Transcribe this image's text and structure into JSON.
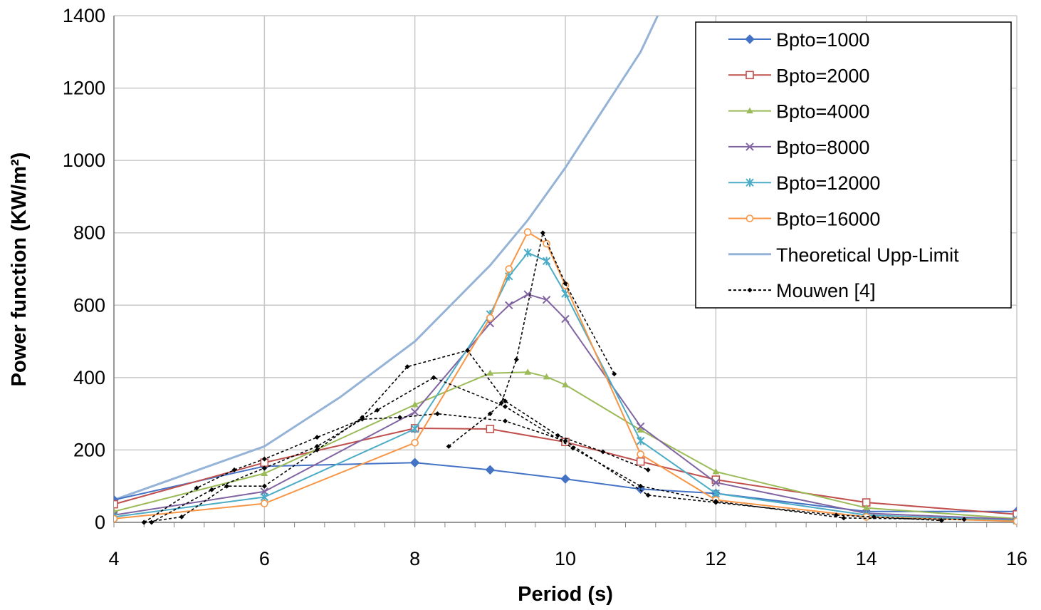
{
  "chart_data": {
    "type": "line",
    "title": "",
    "xlabel": "Period (s)",
    "ylabel": "Power function (KW/m²)",
    "xlim": [
      4,
      16
    ],
    "ylim": [
      0,
      1400
    ],
    "xticks": [
      "4",
      "6",
      "8",
      "10",
      "12",
      "14",
      "16"
    ],
    "yticks": [
      "0",
      "200",
      "400",
      "600",
      "800",
      "1000",
      "1200",
      "1400"
    ],
    "grid": true,
    "legend_position": "top-right",
    "series": [
      {
        "name": "Bpto=1000",
        "color": "#4472c4",
        "marker": "diamond",
        "dashed": false,
        "x": [
          4,
          6,
          8,
          9,
          10,
          11,
          12,
          14,
          16
        ],
        "y": [
          62,
          155,
          165,
          145,
          120,
          92,
          80,
          30,
          30
        ]
      },
      {
        "name": "Bpto=2000",
        "color": "#c0504d",
        "marker": "square",
        "dashed": false,
        "x": [
          4,
          6,
          8,
          9,
          10,
          11,
          12,
          14,
          16
        ],
        "y": [
          50,
          165,
          260,
          258,
          222,
          168,
          118,
          55,
          22
        ]
      },
      {
        "name": "Bpto=4000",
        "color": "#9bbb59",
        "marker": "triangle",
        "dashed": false,
        "x": [
          4,
          6,
          8,
          9,
          9.5,
          9.75,
          10,
          11,
          12,
          14,
          16
        ],
        "y": [
          30,
          135,
          325,
          412,
          415,
          402,
          380,
          255,
          140,
          40,
          10
        ]
      },
      {
        "name": "Bpto=8000",
        "color": "#8064a2",
        "marker": "x",
        "dashed": false,
        "x": [
          4,
          6,
          8,
          9,
          9.25,
          9.5,
          9.75,
          10,
          11,
          12,
          14,
          16
        ],
        "y": [
          20,
          85,
          305,
          550,
          600,
          630,
          615,
          562,
          265,
          110,
          25,
          8
        ]
      },
      {
        "name": "Bpto=12000",
        "color": "#4bacc6",
        "marker": "star",
        "dashed": false,
        "x": [
          4,
          6,
          8,
          9,
          9.25,
          9.5,
          9.75,
          10,
          11,
          12,
          14,
          16
        ],
        "y": [
          15,
          70,
          258,
          575,
          680,
          745,
          722,
          632,
          225,
          80,
          20,
          5
        ]
      },
      {
        "name": "Bpto=16000",
        "color": "#f79646",
        "marker": "circle",
        "dashed": false,
        "x": [
          4,
          6,
          8,
          9,
          9.25,
          9.5,
          9.75,
          10,
          11,
          12,
          14,
          16
        ],
        "y": [
          10,
          52,
          220,
          565,
          700,
          802,
          770,
          655,
          188,
          62,
          15,
          3
        ]
      },
      {
        "name": "Theoretical Upp-Limit",
        "color": "#95b3d7",
        "marker": "none",
        "dashed": false,
        "x": [
          4,
          6,
          7,
          8,
          9,
          9.5,
          10,
          10.5,
          11,
          11.25
        ],
        "y": [
          62,
          210,
          345,
          500,
          710,
          835,
          980,
          1140,
          1300,
          1410
        ]
      },
      {
        "name": "Mouwen [4]",
        "color": "#000000",
        "marker": "dot",
        "dashed": true,
        "x": [
          4.4,
          4.9,
          5.5,
          6,
          6.7,
          7.3,
          7.9,
          8.7,
          9.2,
          9.9,
          10.5,
          11.1
        ],
        "y": [
          0,
          15,
          100,
          100,
          200,
          290,
          430,
          475,
          335,
          240,
          195,
          145
        ]
      },
      {
        "name": "",
        "color": "#000000",
        "marker": "dot",
        "dashed": true,
        "x": [
          4.5,
          5.3,
          6.0,
          6.7,
          7.5,
          8.25,
          9.2,
          10.1,
          11.0,
          12.0,
          13.7,
          15.3
        ],
        "y": [
          0,
          90,
          150,
          210,
          310,
          400,
          320,
          205,
          100,
          58,
          12,
          8
        ]
      },
      {
        "name": "",
        "color": "#000000",
        "marker": "dot",
        "dashed": true,
        "x": [
          4.4,
          5.1,
          5.6,
          6.0,
          6.7,
          7.3,
          7.8,
          8.3,
          9.2,
          10.0,
          11.1,
          12.0,
          13.6,
          14.1,
          15.0
        ],
        "y": [
          0,
          95,
          145,
          175,
          235,
          285,
          290,
          300,
          280,
          225,
          75,
          55,
          20,
          15,
          5
        ]
      },
      {
        "name": "",
        "color": "#000000",
        "marker": "dot",
        "dashed": true,
        "x": [
          8.45,
          9.0,
          9.15,
          9.35,
          9.7,
          10.0,
          10.65
        ],
        "y": [
          210,
          300,
          330,
          450,
          800,
          660,
          410
        ]
      }
    ]
  }
}
